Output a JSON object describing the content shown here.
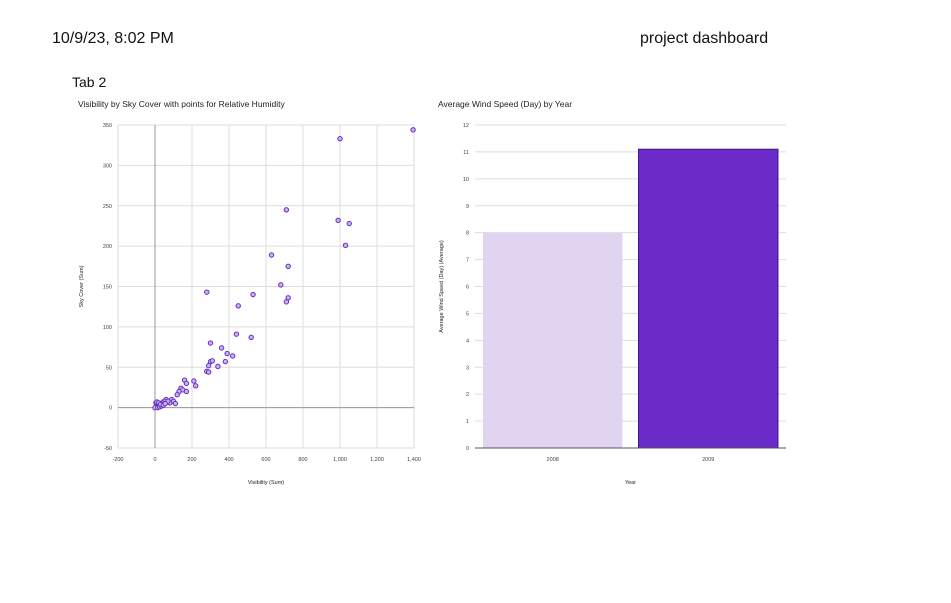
{
  "header": {
    "datetime": "10/9/23, 8:02 PM",
    "title": "project dashboard"
  },
  "tab": {
    "label": "Tab 2"
  },
  "colors": {
    "point_fill": "#c4b5e8",
    "point_stroke": "#6a2bc8",
    "bar_light": "#e1d4f1",
    "bar_dark": "#6a2bc8",
    "grid": "#dddddd"
  },
  "chart_data": [
    {
      "type": "scatter",
      "title": "Visibility by Sky Cover with points for Relative Humidity",
      "xlabel": "Visibility (Sum)",
      "ylabel": "Sky Cover (Sum)",
      "xlim": [
        -200,
        1400
      ],
      "ylim": [
        -50,
        350
      ],
      "x_ticks": [
        -200,
        0,
        200,
        400,
        600,
        800,
        1000,
        1200,
        1400
      ],
      "x_tick_labels": [
        "-200",
        "0",
        "200",
        "400",
        "600",
        "800",
        "1,000",
        "1,200",
        "1,400"
      ],
      "y_ticks": [
        -50,
        0,
        50,
        100,
        150,
        200,
        250,
        300,
        350
      ],
      "y_tick_labels": [
        "-50",
        "0",
        "50",
        "100",
        "150",
        "200",
        "250",
        "300",
        "350"
      ],
      "grid": true,
      "points": [
        [
          1395,
          344
        ],
        [
          1000,
          333
        ],
        [
          710,
          245
        ],
        [
          990,
          232
        ],
        [
          1050,
          228
        ],
        [
          1030,
          201
        ],
        [
          630,
          189
        ],
        [
          720,
          175
        ],
        [
          680,
          152
        ],
        [
          280,
          143
        ],
        [
          530,
          140
        ],
        [
          720,
          136
        ],
        [
          710,
          131
        ],
        [
          450,
          126
        ],
        [
          440,
          91
        ],
        [
          300,
          80
        ],
        [
          520,
          87
        ],
        [
          360,
          74
        ],
        [
          390,
          67
        ],
        [
          420,
          64
        ],
        [
          300,
          57
        ],
        [
          310,
          58
        ],
        [
          380,
          57
        ],
        [
          290,
          52
        ],
        [
          340,
          51
        ],
        [
          280,
          45
        ],
        [
          290,
          44
        ],
        [
          160,
          34
        ],
        [
          170,
          30
        ],
        [
          210,
          33
        ],
        [
          220,
          27
        ],
        [
          140,
          24
        ],
        [
          150,
          22
        ],
        [
          130,
          20
        ],
        [
          170,
          20
        ],
        [
          120,
          16
        ],
        [
          90,
          10
        ],
        [
          100,
          8
        ],
        [
          80,
          6
        ],
        [
          110,
          5
        ],
        [
          60,
          10
        ],
        [
          50,
          8
        ],
        [
          70,
          8
        ],
        [
          40,
          6
        ],
        [
          30,
          5
        ],
        [
          20,
          3
        ],
        [
          10,
          2
        ],
        [
          5,
          1
        ],
        [
          0,
          0
        ],
        [
          15,
          0
        ],
        [
          25,
          1
        ],
        [
          35,
          2
        ],
        [
          5,
          6
        ],
        [
          10,
          7
        ],
        [
          20,
          6
        ],
        [
          30,
          4
        ],
        [
          45,
          3
        ],
        [
          55,
          5
        ]
      ]
    },
    {
      "type": "bar",
      "title": "Average Wind Speed (Day) by Year",
      "xlabel": "Year",
      "ylabel": "Average Wind Speed (Day) (Average)",
      "categories": [
        "2008",
        "2009"
      ],
      "values": [
        8.0,
        11.1
      ],
      "ylim": [
        0,
        12
      ],
      "y_ticks": [
        0,
        1,
        2,
        3,
        4,
        5,
        6,
        7,
        8,
        9,
        10,
        11,
        12
      ],
      "y_tick_labels": [
        "0",
        "1",
        "2",
        "3",
        "4",
        "5",
        "6",
        "7",
        "8",
        "9",
        "10",
        "11",
        "12"
      ],
      "grid": true
    }
  ]
}
